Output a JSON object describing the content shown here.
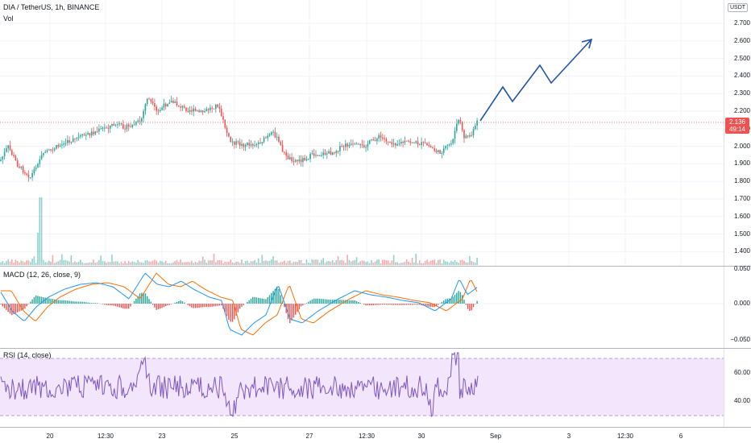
{
  "header": {
    "symbol_title": "DIA / TetherUS, 1h, BINANCE",
    "volume_label": "Vol"
  },
  "currency_label": "USDT",
  "price_axis": {
    "labels": [
      "2.700",
      "2.600",
      "2.500",
      "2.400",
      "2.300",
      "2.200",
      "2.100",
      "2.000",
      "1.900",
      "1.800",
      "1.700",
      "1.600",
      "1.500",
      "1.400"
    ]
  },
  "last_price": {
    "price": "2.136",
    "countdown": "49:14",
    "color": "#ef5350"
  },
  "macd": {
    "label": "MACD (12, 26, close, 9)",
    "axis_labels": [
      "0.050",
      "0.000",
      "−0.050"
    ],
    "macd_color": "#2196f3",
    "signal_color": "#ff6d00"
  },
  "rsi": {
    "label": "RSI (14, close)",
    "axis_labels": [
      "60.00",
      "40.00"
    ],
    "line_color": "#7e57c2",
    "band_color": "#f3e5fb"
  },
  "time_axis": {
    "labels": [
      "20",
      "12:30",
      "23",
      "25",
      "27",
      "12:30",
      "30",
      "Sep",
      "3",
      "12:30",
      "6"
    ]
  },
  "colors": {
    "up": "#26a69a",
    "down": "#ef5350",
    "projection": "#1e53a8"
  }
}
